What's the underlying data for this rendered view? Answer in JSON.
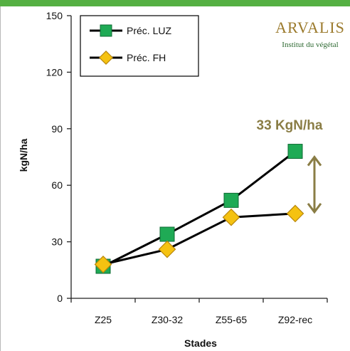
{
  "logo": {
    "main": "ARVALIS",
    "sub": "Institut du végétal",
    "color": "#9b7a2c",
    "sub_color": "#2f6a33"
  },
  "colors": {
    "top_bar": "#55b043",
    "series1_marker": "#1faa55",
    "series2_marker": "#f5c211",
    "series2_marker_edge": "#b8860b",
    "annotation": "#8a7d45",
    "line": "#000000"
  },
  "chart_data": {
    "type": "line",
    "categories": [
      "Z25",
      "Z30-32",
      "Z55-65",
      "Z92-rec"
    ],
    "series": [
      {
        "name": "Préc. LUZ",
        "marker": "square",
        "values": [
          17,
          34,
          52,
          78
        ]
      },
      {
        "name": "Préc. FH",
        "marker": "diamond",
        "values": [
          18,
          26,
          43,
          45
        ]
      }
    ],
    "xlabel": "Stades",
    "ylabel": "kgN/ha",
    "ylim": [
      0,
      150
    ],
    "yticks": [
      0,
      30,
      60,
      90,
      120,
      150
    ],
    "grid": false,
    "legend": "top-left",
    "annotation": {
      "label": "33 KgN/ha",
      "category": "Z92-rec",
      "from": 45,
      "to": 78
    }
  }
}
